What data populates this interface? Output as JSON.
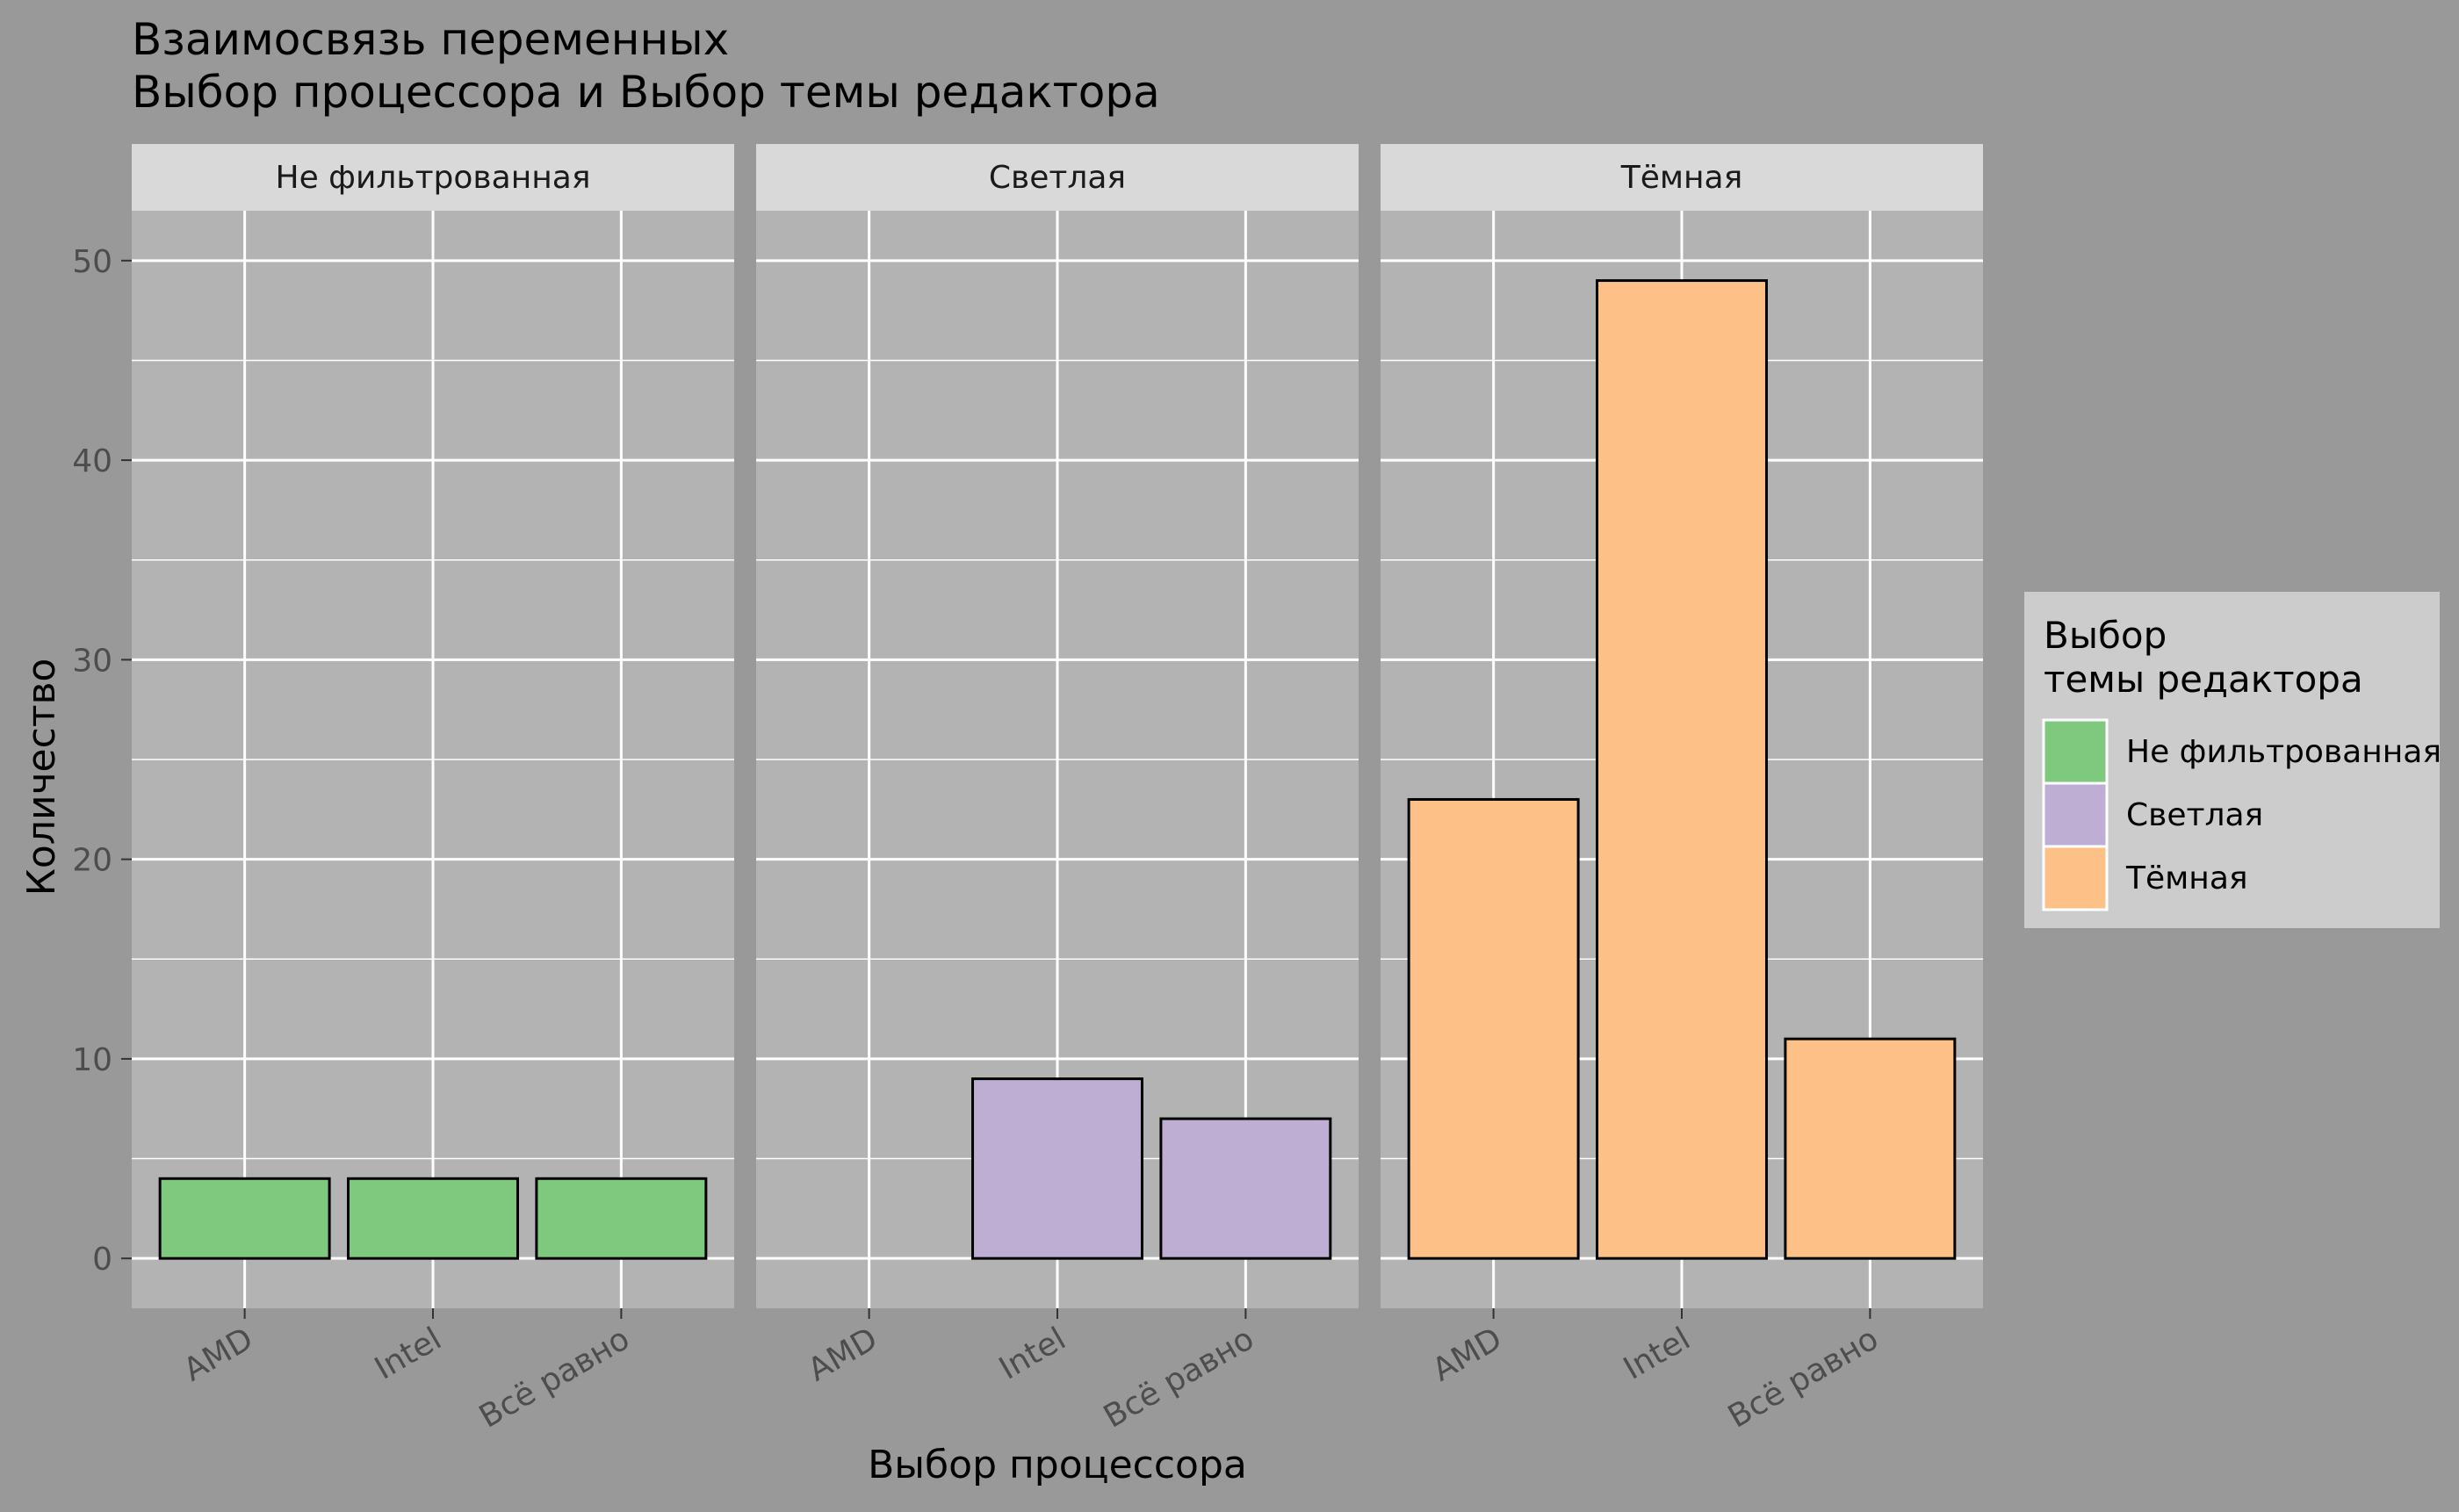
{
  "chart_data": {
    "type": "bar",
    "title": "Взаимосвязь переменных\n Выбор процессора и Выбор темы редактора",
    "xlabel": "Выбор процессора",
    "ylabel": "Количество",
    "ylim": [
      -2.5,
      52.5
    ],
    "yticks": [
      0,
      10,
      20,
      30,
      40,
      50
    ],
    "grid": true,
    "categories": [
      "AMD",
      "Intel",
      "Всё равно"
    ],
    "facets": [
      {
        "name": "Не фильтрованная",
        "values": [
          4,
          4,
          4
        ],
        "color": "#7fc97f"
      },
      {
        "name": "Светлая",
        "values": [
          0,
          9,
          7
        ],
        "color": "#beaed4"
      },
      {
        "name": "Тёмная",
        "values": [
          23,
          49,
          11
        ],
        "color": "#fdc086"
      }
    ],
    "legend": {
      "title": "Выбор\nтемы редактора",
      "position": "right",
      "items": [
        {
          "label": "Не фильтрованная",
          "color": "#7fc97f"
        },
        {
          "label": "Светлая",
          "color": "#beaed4"
        },
        {
          "label": "Тёмная",
          "color": "#fdc086"
        }
      ]
    },
    "colors": {
      "background": "#999999",
      "panel": "#b3b3b3",
      "strip": "#d9d9d9",
      "legend_box": "#cccccc",
      "grid": "#ffffff",
      "bar_outline": "#000000",
      "tick_text": "#4d4d4d"
    }
  }
}
